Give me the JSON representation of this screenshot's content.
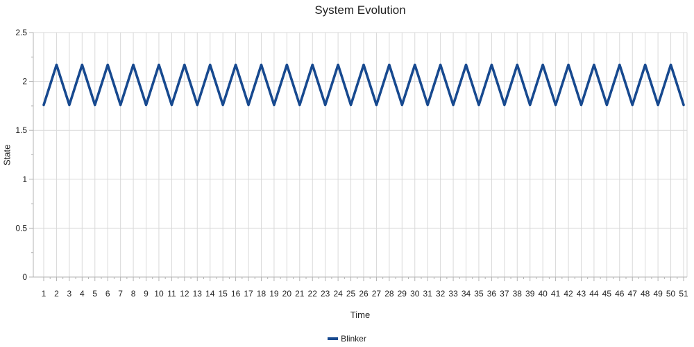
{
  "chart_data": {
    "type": "line",
    "title": "System Evolution",
    "xlabel": "Time",
    "ylabel": "State",
    "x": [
      1,
      2,
      3,
      4,
      5,
      6,
      7,
      8,
      9,
      10,
      11,
      12,
      13,
      14,
      15,
      16,
      17,
      18,
      19,
      20,
      21,
      22,
      23,
      24,
      25,
      26,
      27,
      28,
      29,
      30,
      31,
      32,
      33,
      34,
      35,
      36,
      37,
      38,
      39,
      40,
      41,
      42,
      43,
      44,
      45,
      46,
      47,
      48,
      49,
      50,
      51
    ],
    "series": [
      {
        "name": "Blinker",
        "color": "#17498f",
        "values": [
          1.76,
          2.17,
          1.76,
          2.17,
          1.76,
          2.17,
          1.76,
          2.17,
          1.76,
          2.17,
          1.76,
          2.17,
          1.76,
          2.17,
          1.76,
          2.17,
          1.76,
          2.17,
          1.76,
          2.17,
          1.76,
          2.17,
          1.76,
          2.17,
          1.76,
          2.17,
          1.76,
          2.17,
          1.76,
          2.17,
          1.76,
          2.17,
          1.76,
          2.17,
          1.76,
          2.17,
          1.76,
          2.17,
          1.76,
          2.17,
          1.76,
          2.17,
          1.76,
          2.17,
          1.76,
          2.17,
          1.76,
          2.17,
          1.76,
          2.17,
          1.76
        ]
      }
    ],
    "ylim": [
      0,
      2.5
    ],
    "ytick_interval": 0.5,
    "yticks": [
      "0",
      "0.5",
      "1",
      "1.5",
      "2",
      "2.5"
    ],
    "grid": true,
    "legend_position": "bottom",
    "colors": {
      "grid": "#d9d9d9",
      "axis": "#b3b3b3",
      "tick_label": "#222222"
    }
  }
}
